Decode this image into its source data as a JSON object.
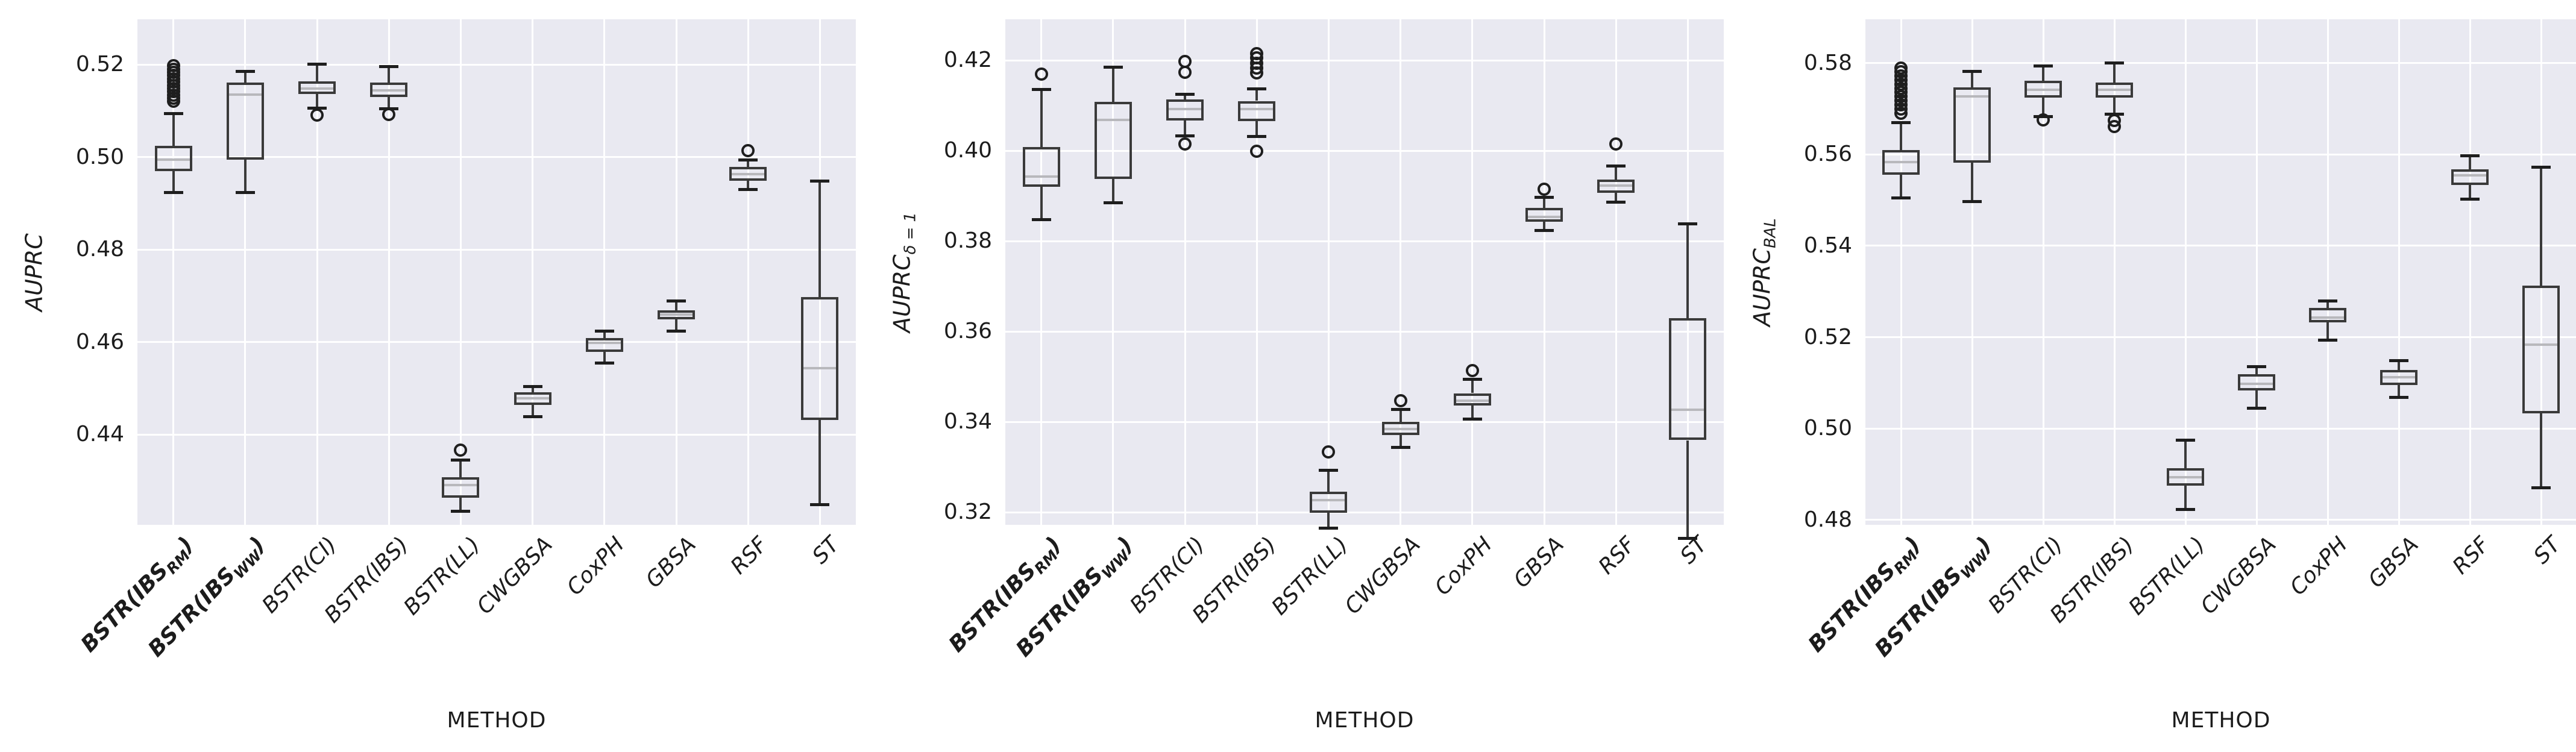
{
  "style": {
    "figure_bg": "#ffffff",
    "plot_bg": "#e9e9f1",
    "grid_color": "#ffffff",
    "box_edge_color": "#3a3a3a",
    "median_color": "#b8b8bc",
    "cap_color": "#1e1e1e",
    "flier_edge_color": "#1e1e1e",
    "text_color": "#1c1c1c"
  },
  "chart_data": [
    {
      "type": "box",
      "ylabel": {
        "text": "AUPRC",
        "sub": ""
      },
      "xlabel": "METHOD",
      "grid": true,
      "ylim": [
        0.4205,
        0.5298
      ],
      "yticks": [
        "0.44",
        "0.46",
        "0.48",
        "0.50",
        "0.52"
      ],
      "categories": [
        {
          "pre": "BSTR(IBS",
          "sub": "RM",
          "post": ")",
          "bold": true
        },
        {
          "pre": "BSTR(IBS",
          "sub": "WW",
          "post": ")",
          "bold": true
        },
        {
          "pre": "BSTR(CI)",
          "sub": "",
          "post": "",
          "bold": false
        },
        {
          "pre": "BSTR(IBS)",
          "sub": "",
          "post": "",
          "bold": false
        },
        {
          "pre": "BSTR(LL)",
          "sub": "",
          "post": "",
          "bold": false
        },
        {
          "pre": "CWGBSA",
          "sub": "",
          "post": "",
          "bold": false
        },
        {
          "pre": "CoxPH",
          "sub": "",
          "post": "",
          "bold": false
        },
        {
          "pre": "GBSA",
          "sub": "",
          "post": "",
          "bold": false
        },
        {
          "pre": "RSF",
          "sub": "",
          "post": "",
          "bold": false
        },
        {
          "pre": "ST",
          "sub": "",
          "post": "",
          "bold": false
        }
      ],
      "boxes": [
        {
          "label": "BSTR(IBS_RM)",
          "whislo": 0.4965,
          "q1": 0.5011,
          "med": 0.5036,
          "q3": 0.5066,
          "whishi": 0.5136,
          "outliers": [
            0.5162,
            0.5169,
            0.5176,
            0.5183,
            0.519,
            0.5197,
            0.5204,
            0.5211,
            0.5218,
            0.5225,
            0.5232,
            0.5239
          ]
        },
        {
          "label": "BSTR(IBS_WW)",
          "whislo": 0.4965,
          "q1": 0.5036,
          "med": 0.5177,
          "q3": 0.5203,
          "whishi": 0.5227,
          "outliers": []
        },
        {
          "label": "BSTR(CI)",
          "whislo": 0.5148,
          "q1": 0.5178,
          "med": 0.519,
          "q3": 0.5206,
          "whishi": 0.5243,
          "outliers": [
            0.5132
          ]
        },
        {
          "label": "BSTR(IBS)",
          "whislo": 0.5146,
          "q1": 0.5172,
          "med": 0.5186,
          "q3": 0.5203,
          "whishi": 0.5237,
          "outliers": [
            0.5134
          ]
        },
        {
          "label": "BSTR(LL)",
          "whislo": 0.4276,
          "q1": 0.4305,
          "med": 0.4333,
          "q3": 0.435,
          "whishi": 0.4387,
          "outliers": [
            0.4408
          ]
        },
        {
          "label": "CWGBSA",
          "whislo": 0.448,
          "q1": 0.4506,
          "med": 0.452,
          "q3": 0.4533,
          "whishi": 0.4546,
          "outliers": []
        },
        {
          "label": "CoxPH",
          "whislo": 0.4596,
          "q1": 0.462,
          "med": 0.464,
          "q3": 0.4651,
          "whishi": 0.4666,
          "outliers": []
        },
        {
          "label": "GBSA",
          "whislo": 0.4666,
          "q1": 0.4691,
          "med": 0.4702,
          "q3": 0.471,
          "whishi": 0.4731,
          "outliers": []
        },
        {
          "label": "RSF",
          "whislo": 0.4972,
          "q1": 0.499,
          "med": 0.5005,
          "q3": 0.502,
          "whishi": 0.5036,
          "outliers": [
            0.5056
          ]
        },
        {
          "label": "ST",
          "whislo": 0.429,
          "q1": 0.4473,
          "med": 0.4585,
          "q3": 0.4739,
          "whishi": 0.499,
          "outliers": []
        }
      ]
    },
    {
      "type": "box",
      "ylabel": {
        "text": "AUPRC",
        "sub": "δ = 1"
      },
      "xlabel": "METHOD",
      "grid": true,
      "ylim": [
        0.3172,
        0.4291
      ],
      "yticks": [
        "0.32",
        "0.34",
        "0.36",
        "0.38",
        "0.40",
        "0.42"
      ],
      "categories": [
        {
          "pre": "BSTR(IBS",
          "sub": "RM",
          "post": ")",
          "bold": true
        },
        {
          "pre": "BSTR(IBS",
          "sub": "WW",
          "post": ")",
          "bold": true
        },
        {
          "pre": "BSTR(CI)",
          "sub": "",
          "post": "",
          "bold": false
        },
        {
          "pre": "BSTR(IBS)",
          "sub": "",
          "post": "",
          "bold": false
        },
        {
          "pre": "BSTR(LL)",
          "sub": "",
          "post": "",
          "bold": false
        },
        {
          "pre": "CWGBSA",
          "sub": "",
          "post": "",
          "bold": false
        },
        {
          "pre": "CoxPH",
          "sub": "",
          "post": "",
          "bold": false
        },
        {
          "pre": "GBSA",
          "sub": "",
          "post": "",
          "bold": false
        },
        {
          "pre": "RSF",
          "sub": "",
          "post": "",
          "bold": false
        },
        {
          "pre": "ST",
          "sub": "",
          "post": "",
          "bold": false
        }
      ],
      "boxes": [
        {
          "label": "BSTR(IBS_RM)",
          "whislo": 0.389,
          "q1": 0.3963,
          "med": 0.3985,
          "q3": 0.4051,
          "whishi": 0.4178,
          "outliers": [
            0.4213
          ]
        },
        {
          "label": "BSTR(IBS_WW)",
          "whislo": 0.3927,
          "q1": 0.3981,
          "med": 0.4111,
          "q3": 0.4151,
          "whishi": 0.4228,
          "outliers": []
        },
        {
          "label": "BSTR(CI)",
          "whislo": 0.4076,
          "q1": 0.411,
          "med": 0.4135,
          "q3": 0.4156,
          "whishi": 0.4168,
          "outliers": [
            0.4217,
            0.424,
            0.4058
          ]
        },
        {
          "label": "BSTR(IBS)",
          "whislo": 0.4074,
          "q1": 0.4108,
          "med": 0.4135,
          "q3": 0.4153,
          "whishi": 0.418,
          "outliers": [
            0.4215,
            0.4226,
            0.4237,
            0.4248,
            0.4258,
            0.4041
          ]
        },
        {
          "label": "BSTR(LL)",
          "whislo": 0.3207,
          "q1": 0.3242,
          "med": 0.327,
          "q3": 0.3288,
          "whishi": 0.3335,
          "outliers": [
            0.3376
          ]
        },
        {
          "label": "CWGBSA",
          "whislo": 0.3386,
          "q1": 0.3413,
          "med": 0.3427,
          "q3": 0.3443,
          "whishi": 0.347,
          "outliers": [
            0.349
          ]
        },
        {
          "label": "CoxPH",
          "whislo": 0.3449,
          "q1": 0.3479,
          "med": 0.3489,
          "q3": 0.3506,
          "whishi": 0.3537,
          "outliers": [
            0.3556
          ]
        },
        {
          "label": "GBSA",
          "whislo": 0.3866,
          "q1": 0.3885,
          "med": 0.3896,
          "q3": 0.3916,
          "whishi": 0.3939,
          "outliers": [
            0.3957
          ]
        },
        {
          "label": "RSF",
          "whislo": 0.3929,
          "q1": 0.3949,
          "med": 0.3966,
          "q3": 0.3979,
          "whishi": 0.4009,
          "outliers": [
            0.4058
          ]
        },
        {
          "label": "ST",
          "whislo": 0.3185,
          "q1": 0.3402,
          "med": 0.347,
          "q3": 0.3672,
          "whishi": 0.3881,
          "outliers": []
        }
      ]
    },
    {
      "type": "box",
      "ylabel": {
        "text": "AUPRC",
        "sub": "BAL"
      },
      "xlabel": "METHOD",
      "grid": true,
      "ylim": [
        0.4789,
        0.5896
      ],
      "yticks": [
        "0.48",
        "0.50",
        "0.52",
        "0.54",
        "0.56",
        "0.58"
      ],
      "categories": [
        {
          "pre": "BSTR(IBS",
          "sub": "RM",
          "post": ")",
          "bold": true
        },
        {
          "pre": "BSTR(IBS",
          "sub": "WW",
          "post": ")",
          "bold": true
        },
        {
          "pre": "BSTR(CI)",
          "sub": "",
          "post": "",
          "bold": false
        },
        {
          "pre": "BSTR(IBS)",
          "sub": "",
          "post": "",
          "bold": false
        },
        {
          "pre": "BSTR(LL)",
          "sub": "",
          "post": "",
          "bold": false
        },
        {
          "pre": "CWGBSA",
          "sub": "",
          "post": "",
          "bold": false
        },
        {
          "pre": "CoxPH",
          "sub": "",
          "post": "",
          "bold": false
        },
        {
          "pre": "GBSA",
          "sub": "",
          "post": "",
          "bold": false
        },
        {
          "pre": "RSF",
          "sub": "",
          "post": "",
          "bold": false
        },
        {
          "pre": "ST",
          "sub": "",
          "post": "",
          "bold": false
        }
      ],
      "boxes": [
        {
          "label": "BSTR(IBS_RM)",
          "whislo": 0.5547,
          "q1": 0.5598,
          "med": 0.5626,
          "q3": 0.5652,
          "whishi": 0.5712,
          "outliers": [
            0.5733,
            0.5742,
            0.5751,
            0.576,
            0.5769,
            0.5778,
            0.5787,
            0.5796,
            0.5805,
            0.5814,
            0.5823,
            0.5832
          ]
        },
        {
          "label": "BSTR(IBS_WW)",
          "whislo": 0.5539,
          "q1": 0.5624,
          "med": 0.577,
          "q3": 0.5789,
          "whishi": 0.5824,
          "outliers": []
        },
        {
          "label": "BSTR(CI)",
          "whislo": 0.5725,
          "q1": 0.5767,
          "med": 0.5784,
          "q3": 0.5804,
          "whishi": 0.5836,
          "outliers": [
            0.5718
          ]
        },
        {
          "label": "BSTR(IBS)",
          "whislo": 0.573,
          "q1": 0.5767,
          "med": 0.5784,
          "q3": 0.58,
          "whishi": 0.5842,
          "outliers": [
            0.5703,
            0.5717
          ]
        },
        {
          "label": "BSTR(LL)",
          "whislo": 0.4865,
          "q1": 0.4917,
          "med": 0.4935,
          "q3": 0.4955,
          "whishi": 0.5017,
          "outliers": []
        },
        {
          "label": "CWGBSA",
          "whislo": 0.5086,
          "q1": 0.5125,
          "med": 0.514,
          "q3": 0.5161,
          "whishi": 0.5177,
          "outliers": []
        },
        {
          "label": "CoxPH",
          "whislo": 0.5236,
          "q1": 0.5275,
          "med": 0.5285,
          "q3": 0.5306,
          "whishi": 0.5321,
          "outliers": []
        },
        {
          "label": "GBSA",
          "whislo": 0.5111,
          "q1": 0.5137,
          "med": 0.5155,
          "q3": 0.517,
          "whishi": 0.5191,
          "outliers": []
        },
        {
          "label": "RSF",
          "whislo": 0.5545,
          "q1": 0.5575,
          "med": 0.5597,
          "q3": 0.561,
          "whishi": 0.564,
          "outliers": []
        },
        {
          "label": "ST",
          "whislo": 0.4912,
          "q1": 0.5075,
          "med": 0.5226,
          "q3": 0.5355,
          "whishi": 0.5614,
          "outliers": []
        }
      ]
    }
  ]
}
